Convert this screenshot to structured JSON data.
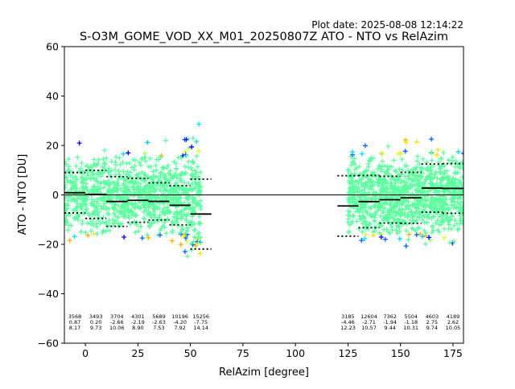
{
  "chart_data": {
    "type": "scatter",
    "title": "S-O3M_GOME_VOD_XX_M01_20250807Z ATO - NTO vs RelAzim",
    "plot_date": "Plot date: 2025-08-08 12:14:22",
    "xlabel": "RelAzim [degree]",
    "ylabel": "ATO - NTO [DU]",
    "xlim": [
      -10,
      180
    ],
    "ylim": [
      -60,
      60
    ],
    "x_ticks": [
      0,
      25,
      50,
      75,
      100,
      125,
      150,
      175
    ],
    "x_tick_labels": [
      "0",
      "25",
      "50",
      "75",
      "100",
      "125",
      "150",
      "175"
    ],
    "y_ticks": [
      -60,
      -40,
      -20,
      0,
      20,
      40,
      60
    ],
    "y_tick_labels": [
      "−60",
      "−40",
      "−20",
      "0",
      "20",
      "40",
      "60"
    ],
    "grid": false,
    "zero_line": 0,
    "colors": {
      "scatter_low": "#0000ff",
      "scatter_mid": "#5fffa0",
      "scatter_high": "#ffa500",
      "stats_line": "#000000"
    },
    "scatter_clusters": [
      {
        "x_range": [
          -10,
          55
        ],
        "y_center": 0,
        "y_spread": 22
      },
      {
        "x_range": [
          125,
          180
        ],
        "y_center": 0,
        "y_spread": 24
      }
    ],
    "bins": [
      {
        "x_range": [
          -10,
          0
        ],
        "count": "3568",
        "mean": "0.87",
        "std": "8.17"
      },
      {
        "x_range": [
          0,
          10
        ],
        "count": "3493",
        "mean": "0.20",
        "std": "9.73"
      },
      {
        "x_range": [
          10,
          20
        ],
        "count": "3704",
        "mean": "-2.66",
        "std": "10.06"
      },
      {
        "x_range": [
          20,
          30
        ],
        "count": "4301",
        "mean": "-2.19",
        "std": "8.90"
      },
      {
        "x_range": [
          30,
          40
        ],
        "count": "5689",
        "mean": "-2.63",
        "std": "7.53"
      },
      {
        "x_range": [
          40,
          50
        ],
        "count": "10196",
        "mean": "-4.20",
        "std": "7.92"
      },
      {
        "x_range": [
          50,
          60
        ],
        "count": "15256",
        "mean": "-7.75",
        "std": "14.14"
      },
      {
        "x_range": [
          120,
          130
        ],
        "count": "3185",
        "mean": "-4.46",
        "std": "12.23"
      },
      {
        "x_range": [
          130,
          140
        ],
        "count": "12604",
        "mean": "-2.71",
        "std": "10.57"
      },
      {
        "x_range": [
          140,
          150
        ],
        "count": "7362",
        "mean": "-1.94",
        "std": "9.44"
      },
      {
        "x_range": [
          150,
          160
        ],
        "count": "5504",
        "mean": "-1.18",
        "std": "10.31"
      },
      {
        "x_range": [
          160,
          170
        ],
        "count": "4603",
        "mean": "2.75",
        "std": "9.74"
      },
      {
        "x_range": [
          170,
          180
        ],
        "count": "4189",
        "mean": "2.62",
        "std": "10.05"
      }
    ]
  }
}
